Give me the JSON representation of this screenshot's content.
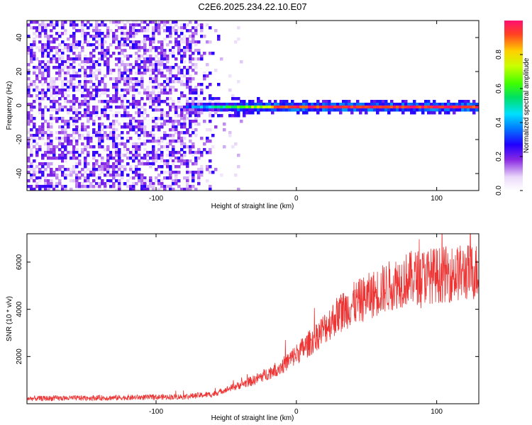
{
  "title": "C2E6.2025.234.22.10.E07",
  "chart_data": [
    {
      "type": "heatmap",
      "xlabel": "Height of straight line (km)",
      "ylabel": "Frequency (Hz)",
      "xlim": [
        -192,
        130
      ],
      "ylim": [
        -50,
        50
      ],
      "x_ticks": [
        -100,
        0,
        100
      ],
      "y_ticks": [
        -40,
        -20,
        0,
        20,
        40
      ],
      "colorbar": {
        "label": "Normalized spectral amplitude",
        "range": [
          0,
          1
        ],
        "ticks": [
          0.0,
          0.2,
          0.4,
          0.6,
          0.8
        ],
        "tick_labels": [
          "0.0",
          "0.2",
          "0.4",
          "0.6",
          "0.8"
        ]
      },
      "features": {
        "noise_region_x": [
          -192,
          -55
        ],
        "ridge_start_x": -80,
        "ridge_freq": 0,
        "ridge_peak_amplitude": 0.95
      }
    },
    {
      "type": "line",
      "xlabel": "Height of straight line (km)",
      "ylabel": "SNR (10 * v/v)",
      "xlim": [
        -192,
        130
      ],
      "ylim": [
        0,
        7200
      ],
      "x_ticks": [
        -100,
        0,
        100
      ],
      "y_ticks": [
        2000,
        4000,
        6000
      ],
      "series": [
        {
          "color": "#ee3333",
          "trend": [
            [
              -192,
              220
            ],
            [
              -120,
              260
            ],
            [
              -80,
              300
            ],
            [
              -60,
              400
            ],
            [
              -45,
              700
            ],
            [
              -30,
              1000
            ],
            [
              -20,
              1300
            ],
            [
              -10,
              1600
            ],
            [
              0,
              2100
            ],
            [
              10,
              2600
            ],
            [
              20,
              3200
            ],
            [
              30,
              3800
            ],
            [
              40,
              4200
            ],
            [
              50,
              4500
            ],
            [
              60,
              4800
            ],
            [
              70,
              5100
            ],
            [
              80,
              5300
            ],
            [
              90,
              5400
            ],
            [
              100,
              5450
            ],
            [
              110,
              5500
            ],
            [
              120,
              5550
            ],
            [
              130,
              5600
            ]
          ]
        }
      ]
    }
  ]
}
